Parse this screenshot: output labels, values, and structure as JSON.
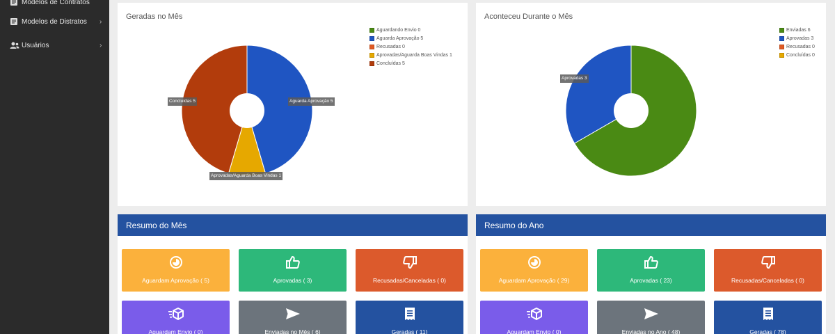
{
  "sidebar": {
    "items": [
      {
        "label": "Modelos de Contratos",
        "icon": "document-icon"
      },
      {
        "label": "Modelos de Distratos",
        "icon": "document-icon"
      },
      {
        "label": "Usuários",
        "icon": "users-icon"
      }
    ]
  },
  "colors": {
    "sidebar_bg": "#2b2b2b",
    "panel_header": "#2452a0",
    "green": "#4a8a14",
    "blue": "#1f55c2",
    "orange": "#e05a24",
    "yellow": "#e6a800",
    "red_brown": "#b23c0c"
  },
  "chart_month": {
    "title": "Geradas no Mês",
    "legend": [
      {
        "label": "Aguardando Envio 0",
        "color": "#4a8a14"
      },
      {
        "label": "Aguarda Aprovação 5",
        "color": "#1f55c2"
      },
      {
        "label": "Recusadas 0",
        "color": "#e05a24"
      },
      {
        "label": "Aprovadas/Aguarda Boas Vindas 1",
        "color": "#e6a800"
      },
      {
        "label": "Concluídas 5",
        "color": "#b23c0c"
      }
    ],
    "labels": {
      "aguarda": "Aguarda Aprovação 5",
      "aprovadas": "Aprovadas/Aguarda Boas Vindas 1",
      "concluidas": "Concluídas 5"
    }
  },
  "chart_year": {
    "title": "Aconteceu Durante o Mês",
    "legend": [
      {
        "label": "Enviadas 6",
        "color": "#4a8a14"
      },
      {
        "label": "Aprovadas 3",
        "color": "#1f55c2"
      },
      {
        "label": "Recusadas 0",
        "color": "#e05a24"
      },
      {
        "label": "Concluídas 0",
        "color": "#e6a800"
      }
    ],
    "labels": {
      "aprovadas": "Aprovadas 3"
    }
  },
  "chart_data": [
    {
      "type": "pie",
      "title": "Geradas no Mês",
      "categories": [
        "Aguardando Envio",
        "Aguarda Aprovação",
        "Recusadas",
        "Aprovadas/Aguarda Boas Vindas",
        "Concluídas"
      ],
      "values": [
        0,
        5,
        0,
        1,
        5
      ],
      "colors": [
        "#4a8a14",
        "#1f55c2",
        "#e05a24",
        "#e6a800",
        "#b23c0c"
      ],
      "legend": "top-right"
    },
    {
      "type": "pie",
      "title": "Aconteceu Durante o Mês",
      "categories": [
        "Enviadas",
        "Aprovadas",
        "Recusadas",
        "Concluídas"
      ],
      "values": [
        6,
        3,
        0,
        0
      ],
      "colors": [
        "#4a8a14",
        "#1f55c2",
        "#e05a24",
        "#e6a800"
      ],
      "legend": "top-right"
    }
  ],
  "resumo_mes": {
    "title": "Resumo do Mês",
    "tiles": [
      {
        "label": "Aguardam Aprovação ( 5)",
        "color": "#fbb13c",
        "icon": "pie-chart-icon"
      },
      {
        "label": "Aprovadas ( 3)",
        "color": "#2db87a",
        "icon": "thumbs-up-icon"
      },
      {
        "label": "Recusadas/Canceladas ( 0)",
        "color": "#dc5a2c",
        "icon": "thumbs-down-icon"
      },
      {
        "label": "Aguardam Envio ( 0)",
        "color": "#7a5cea",
        "icon": "shipping-box-icon"
      },
      {
        "label": "Enviadas no Mês ( 6)",
        "color": "#6c747c",
        "icon": "paper-plane-icon"
      },
      {
        "label": "Geradas ( 11)",
        "color": "#2452a0",
        "icon": "receipt-icon"
      }
    ]
  },
  "resumo_ano": {
    "title": "Resumo do Ano",
    "tiles": [
      {
        "label": "Aguardam Aprovação ( 29)",
        "color": "#fbb13c",
        "icon": "pie-chart-icon"
      },
      {
        "label": "Aprovadas ( 23)",
        "color": "#2db87a",
        "icon": "thumbs-up-icon"
      },
      {
        "label": "Recusadas/Canceladas ( 0)",
        "color": "#dc5a2c",
        "icon": "thumbs-down-icon"
      },
      {
        "label": "Aguardam Envio ( 0)",
        "color": "#7a5cea",
        "icon": "shipping-box-icon"
      },
      {
        "label": "Enviadas no Ano ( 48)",
        "color": "#6c747c",
        "icon": "paper-plane-icon"
      },
      {
        "label": "Geradas ( 78)",
        "color": "#2452a0",
        "icon": "receipt-icon"
      }
    ]
  }
}
